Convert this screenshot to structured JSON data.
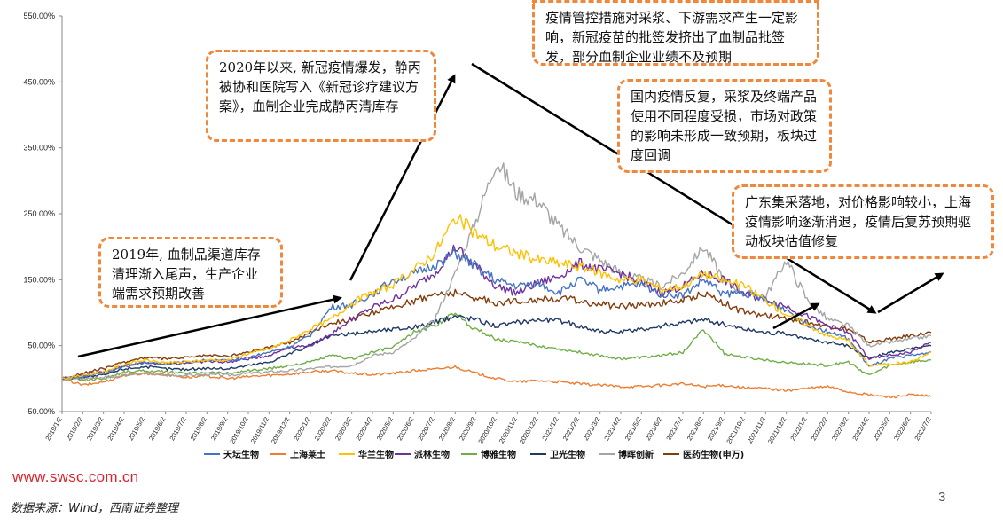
{
  "chart_data": {
    "type": "line",
    "xlabel": "",
    "ylabel": "",
    "ylim": [
      -50,
      550
    ],
    "y_ticks": [
      "550.00%",
      "450.00%",
      "350.00%",
      "250.00%",
      "150.00%",
      "50.00%",
      "-50.00%"
    ],
    "y_tick_values": [
      550,
      450,
      350,
      250,
      150,
      50,
      -50
    ],
    "x_ticks": [
      "2019/1/2",
      "2019/2/2",
      "2019/3/2",
      "2019/4/2",
      "2019/5/2",
      "2019/6/2",
      "2019/7/2",
      "2019/8/2",
      "2019/9/2",
      "2019/10/2",
      "2019/11/2",
      "2019/12/2",
      "2020/1/2",
      "2020/2/2",
      "2020/3/2",
      "2020/4/2",
      "2020/5/2",
      "2020/6/2",
      "2020/7/2",
      "2020/8/2",
      "2020/9/2",
      "2020/10/2",
      "2020/11/2",
      "2020/12/2",
      "2021/1/2",
      "2021/2/2",
      "2021/3/2",
      "2021/4/2",
      "2021/5/2",
      "2021/6/2",
      "2021/7/2",
      "2021/8/2",
      "2021/9/2",
      "2021/10/2",
      "2021/11/2",
      "2021/12/2",
      "2022/1/2",
      "2022/2/2",
      "2022/3/2",
      "2022/4/2",
      "2022/5/2",
      "2022/6/2",
      "2022/7/2"
    ],
    "legend_position": "bottom",
    "series": [
      {
        "name": "天坛生物",
        "color": "#4472c4",
        "values": [
          0,
          3,
          8,
          18,
          24,
          22,
          25,
          28,
          27,
          32,
          40,
          48,
          66,
          108,
          112,
          128,
          150,
          158,
          172,
          190,
          170,
          148,
          140,
          145,
          130,
          150,
          135,
          140,
          142,
          128,
          126,
          150,
          128,
          130,
          118,
          105,
          82,
          72,
          60,
          18,
          30,
          35,
          40
        ]
      },
      {
        "name": "上海莱士",
        "color": "#ed7d31",
        "values": [
          0,
          -10,
          -5,
          5,
          8,
          6,
          2,
          4,
          0,
          3,
          5,
          7,
          10,
          12,
          8,
          6,
          8,
          12,
          14,
          18,
          8,
          0,
          -5,
          -3,
          -5,
          -8,
          -10,
          -12,
          -12,
          -10,
          -8,
          -12,
          -10,
          -14,
          -15,
          -18,
          -15,
          -12,
          -20,
          -25,
          -28,
          -25,
          -27
        ]
      },
      {
        "name": "华兰生物",
        "color": "#ffc000",
        "values": [
          0,
          5,
          10,
          22,
          28,
          24,
          25,
          28,
          28,
          38,
          45,
          58,
          75,
          90,
          115,
          130,
          142,
          165,
          190,
          245,
          220,
          200,
          190,
          180,
          175,
          170,
          160,
          150,
          150,
          135,
          140,
          160,
          148,
          140,
          118,
          98,
          82,
          65,
          58,
          20,
          22,
          25,
          40
        ]
      },
      {
        "name": "派林生物",
        "color": "#7030a0",
        "values": [
          0,
          5,
          10,
          20,
          25,
          22,
          24,
          26,
          25,
          30,
          35,
          48,
          50,
          68,
          90,
          108,
          120,
          140,
          160,
          200,
          170,
          140,
          130,
          145,
          155,
          175,
          165,
          160,
          145,
          130,
          140,
          160,
          150,
          128,
          120,
          110,
          95,
          80,
          70,
          30,
          35,
          40,
          55
        ]
      },
      {
        "name": "博雅生物",
        "color": "#70ad47",
        "values": [
          0,
          -2,
          0,
          10,
          12,
          10,
          8,
          10,
          8,
          12,
          15,
          20,
          25,
          35,
          30,
          40,
          48,
          70,
          80,
          100,
          75,
          60,
          55,
          50,
          45,
          40,
          35,
          30,
          32,
          35,
          40,
          75,
          38,
          32,
          28,
          25,
          22,
          20,
          25,
          5,
          20,
          25,
          28
        ]
      },
      {
        "name": "卫光生物",
        "color": "#1f3864",
        "values": [
          0,
          2,
          5,
          15,
          18,
          15,
          14,
          16,
          15,
          20,
          25,
          38,
          50,
          65,
          68,
          72,
          75,
          78,
          85,
          95,
          90,
          80,
          85,
          90,
          88,
          80,
          72,
          70,
          75,
          80,
          85,
          90,
          82,
          75,
          70,
          68,
          60,
          55,
          50,
          30,
          40,
          45,
          50
        ]
      },
      {
        "name": "博晖创新",
        "color": "#a5a5a5",
        "values": [
          0,
          0,
          2,
          5,
          8,
          5,
          5,
          6,
          5,
          8,
          10,
          12,
          15,
          18,
          20,
          35,
          40,
          60,
          90,
          160,
          240,
          330,
          280,
          270,
          230,
          200,
          180,
          160,
          150,
          140,
          160,
          200,
          150,
          130,
          125,
          180,
          120,
          90,
          80,
          50,
          55,
          60,
          65
        ]
      },
      {
        "name": "医药生物(申万)",
        "color": "#843c0c",
        "values": [
          0,
          8,
          15,
          25,
          32,
          30,
          32,
          35,
          34,
          40,
          48,
          55,
          70,
          85,
          90,
          100,
          108,
          118,
          128,
          130,
          122,
          115,
          118,
          120,
          122,
          118,
          112,
          110,
          112,
          115,
          118,
          130,
          115,
          100,
          95,
          92,
          85,
          80,
          75,
          55,
          60,
          65,
          70
        ]
      }
    ]
  },
  "annotations": [
    {
      "text": "2019年, 血制品渠道库存清理渐入尾声，生产企业端需求预期改善"
    },
    {
      "text": "2020年以来, 新冠疫情爆发，静丙被协和医院写入《新冠诊疗建议方案》，血制企业完成静丙清库存"
    },
    {
      "text": "疫情管控措施对采浆、下游需求产生一定影响，新冠疫苗的批签发挤出了血制品批签发，部分血制企业业绩不及预期"
    },
    {
      "text": "国内疫情反复，采浆及终端产品使用不同程度受损，市场对政策的影响未形成一致预期，板块过度回调"
    },
    {
      "text": "广东集采落地，对价格影响较小，上海疫情影响逐渐消退，疫情后复苏预期驱动板块估值修复"
    }
  ],
  "footer": {
    "website": "www.swsc.com.cn",
    "source": "数据来源：Wind，西南证券整理",
    "page_number": "3"
  }
}
